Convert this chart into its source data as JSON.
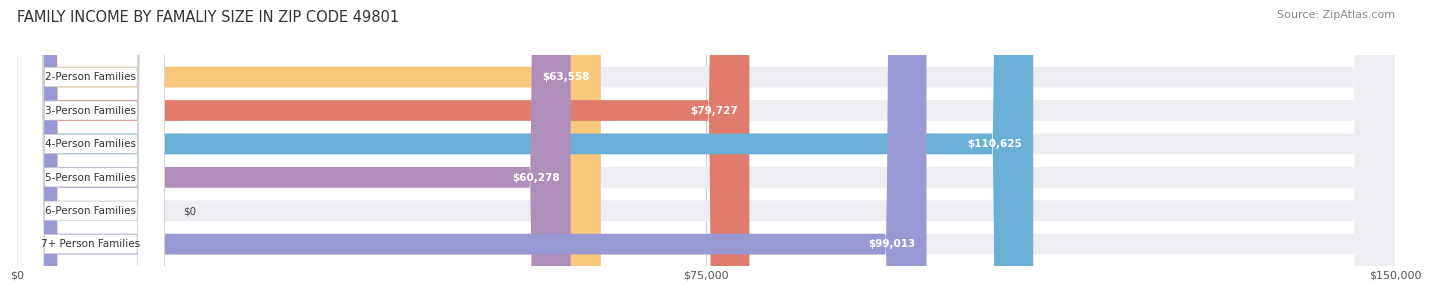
{
  "title": "FAMILY INCOME BY FAMALIY SIZE IN ZIP CODE 49801",
  "source": "Source: ZipAtlas.com",
  "categories": [
    "2-Person Families",
    "3-Person Families",
    "4-Person Families",
    "5-Person Families",
    "6-Person Families",
    "7+ Person Families"
  ],
  "values": [
    63558,
    79727,
    110625,
    60278,
    0,
    99013
  ],
  "bar_colors": [
    "#f8c97a",
    "#e07b6e",
    "#6aafd6",
    "#b08ebc",
    "#6ecfca",
    "#9999d4"
  ],
  "bar_bg_color": "#ededf2",
  "value_labels": [
    "$63,558",
    "$79,727",
    "$110,625",
    "$60,278",
    "$0",
    "$99,013"
  ],
  "xlim": [
    0,
    150000
  ],
  "xtick_labels": [
    "$0",
    "$75,000",
    "$150,000"
  ],
  "title_fontsize": 10.5,
  "source_fontsize": 8,
  "bar_label_fontsize": 7.5,
  "value_fontsize": 7.5,
  "background_color": "#ffffff",
  "bar_height": 0.62
}
